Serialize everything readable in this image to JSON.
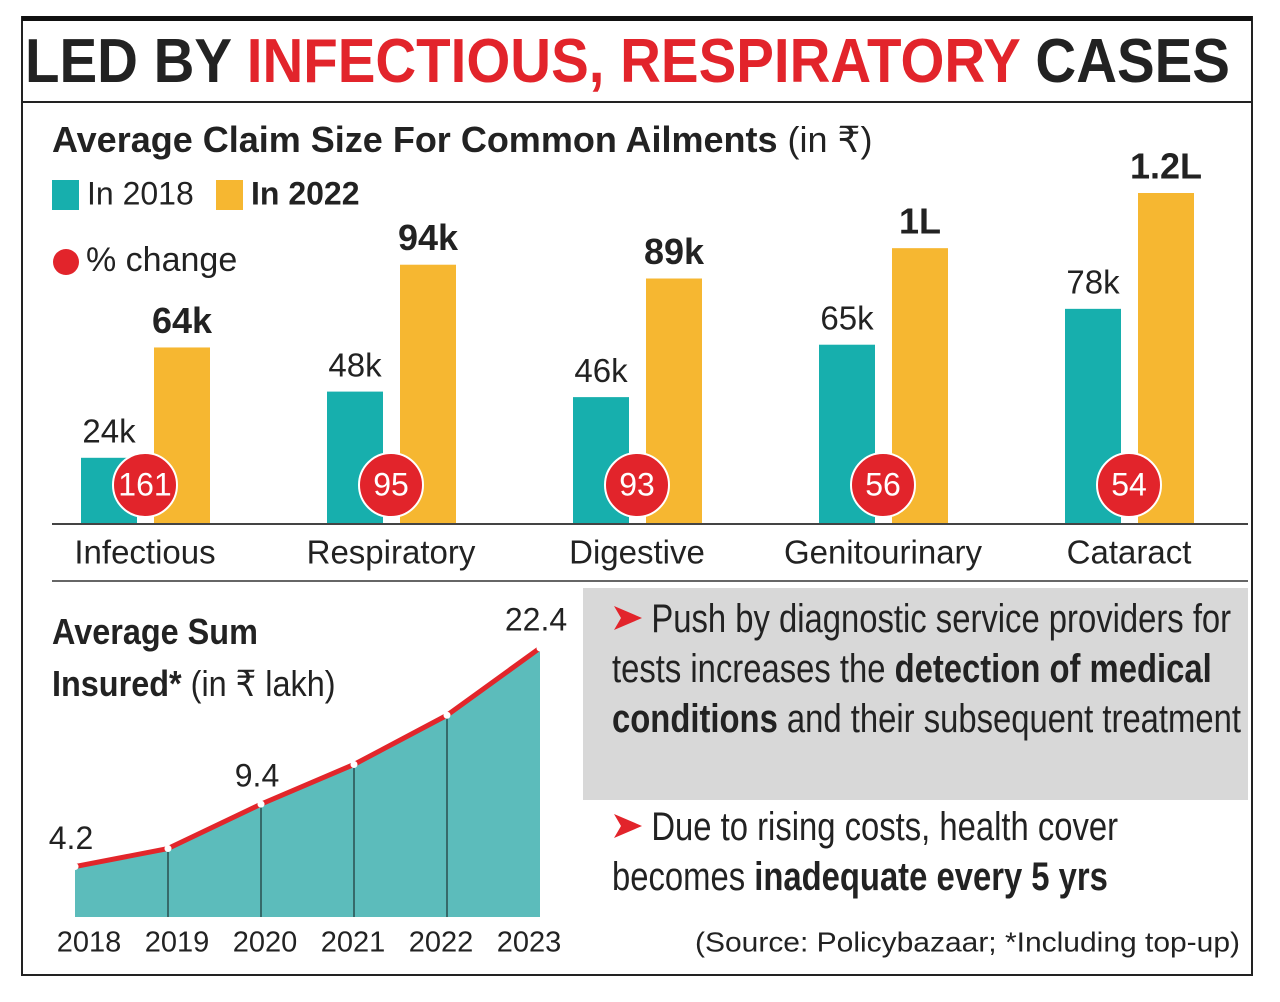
{
  "headline": [
    "LED BY ",
    "INFECTIOUS, RESPIRATORY",
    " CASES"
  ],
  "chart_data": [
    {
      "type": "bar",
      "title": "Average Claim Size For Common Ailments",
      "subtitle": "(in ₹)",
      "categories": [
        "Infectious",
        "Respiratory",
        "Digestive",
        "Genitourinary",
        "Cataract"
      ],
      "series": [
        {
          "name": "In 2018",
          "color": "#17afad",
          "values": [
            24000,
            48000,
            46000,
            65000,
            78000
          ],
          "value_labels": [
            "24k",
            "48k",
            "46k",
            "65k",
            "78k"
          ]
        },
        {
          "name": "In 2022",
          "color": "#f6b731",
          "values": [
            64000,
            94000,
            89000,
            100000,
            120000
          ],
          "value_labels": [
            "64k",
            "94k",
            "89k",
            "1L",
            "1.2L"
          ]
        },
        {
          "name": "% change",
          "color": "#e2242b",
          "type": "marker",
          "values": [
            161,
            95,
            93,
            56,
            54
          ]
        }
      ],
      "legend": "upper left"
    },
    {
      "type": "area",
      "title": "Average Sum Insured*",
      "subtitle": "(in ₹ lakh)",
      "categories": [
        "2018",
        "2019",
        "2020",
        "2021",
        "2022",
        "2023"
      ],
      "values": [
        4.2,
        5.7,
        9.4,
        12.7,
        16.8,
        22.4
      ],
      "value_labels": [
        "4.2",
        null,
        "9.4",
        null,
        null,
        "22.4"
      ],
      "color": "#5cbcbb",
      "line_color": "#e2262b"
    }
  ],
  "notes": [
    [
      "Push by diagnostic service providers for tests increases the ",
      "detection of medical conditions",
      " and their subsequent treatment"
    ],
    [
      "Due to rising costs, health cover becomes ",
      "inadequate every 5 yrs"
    ]
  ],
  "source": "(Source: Policybazaar; *Including top-up)"
}
